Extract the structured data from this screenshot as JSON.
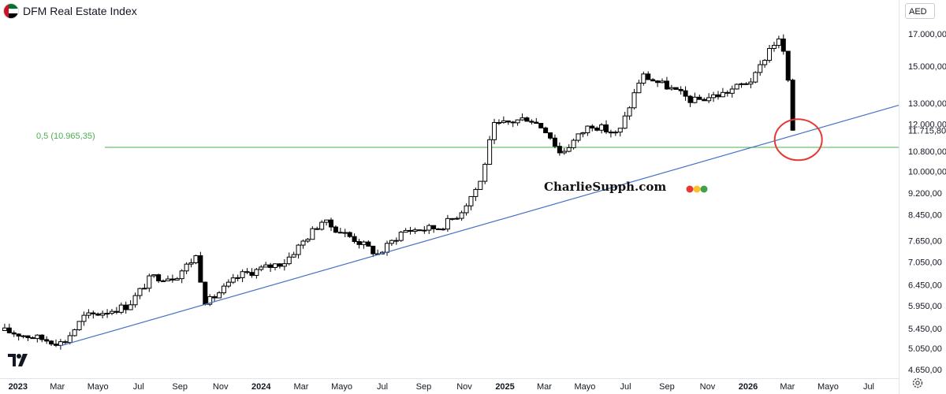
{
  "header": {
    "title": "DFM Real Estate Index",
    "currency": "AED"
  },
  "fib_label": "0,5 (10.965,35)",
  "watermark": "CharlieSupph.com",
  "icons": {
    "flag": "uae-flag-icon",
    "logo": "tradingview-logo-icon",
    "settings": "settings-gear-icon"
  },
  "colors": {
    "fib_line": "#4caf50",
    "trend_line": "#4472c4",
    "highlight": "#e53935",
    "up_body": "#ffffff",
    "down_body": "#000000"
  },
  "chart_data": {
    "type": "candlestick",
    "scale": "log",
    "ylim": [
      4500,
      18000
    ],
    "x_start": "2022-12-05",
    "x_end": "2026-08-15",
    "y_ticks": [
      "17.000,00",
      "15.000,00",
      "13.000,00",
      "12.000,00",
      "11.715,80",
      "10.800,00",
      "10.000,00",
      "9.200,00",
      "8.450,00",
      "7.650,00",
      "7.050,00",
      "6.450,00",
      "5.950,00",
      "5.450,00",
      "5.050,00",
      "4.650,00"
    ],
    "y_tick_values": [
      17000,
      15000,
      13000,
      12000,
      11715.8,
      10800,
      10000,
      9200,
      8450,
      7650,
      7050,
      6450,
      5950,
      5450,
      5050,
      4650
    ],
    "last_price_label": "11.715,80",
    "x_ticks": [
      {
        "label": "2023",
        "date": "2023-01-01",
        "bold": true
      },
      {
        "label": "Mar",
        "date": "2023-03-01",
        "bold": false
      },
      {
        "label": "Mayo",
        "date": "2023-05-01",
        "bold": false
      },
      {
        "label": "Jul",
        "date": "2023-07-01",
        "bold": false
      },
      {
        "label": "Sep",
        "date": "2023-09-01",
        "bold": false
      },
      {
        "label": "Nov",
        "date": "2023-11-01",
        "bold": false
      },
      {
        "label": "2024",
        "date": "2024-01-01",
        "bold": true
      },
      {
        "label": "Mar",
        "date": "2024-03-01",
        "bold": false
      },
      {
        "label": "Mayo",
        "date": "2024-05-01",
        "bold": false
      },
      {
        "label": "Jul",
        "date": "2024-07-01",
        "bold": false
      },
      {
        "label": "Sep",
        "date": "2024-09-01",
        "bold": false
      },
      {
        "label": "Nov",
        "date": "2024-11-01",
        "bold": false
      },
      {
        "label": "2025",
        "date": "2025-01-01",
        "bold": true
      },
      {
        "label": "Mar",
        "date": "2025-03-01",
        "bold": false
      },
      {
        "label": "Mayo",
        "date": "2025-05-01",
        "bold": false
      },
      {
        "label": "Jul",
        "date": "2025-07-01",
        "bold": false
      },
      {
        "label": "Sep",
        "date": "2025-09-01",
        "bold": false
      },
      {
        "label": "Nov",
        "date": "2025-11-01",
        "bold": false
      },
      {
        "label": "2026",
        "date": "2026-01-01",
        "bold": true
      },
      {
        "label": "Mar",
        "date": "2026-03-01",
        "bold": false
      },
      {
        "label": "Mayo",
        "date": "2026-05-01",
        "bold": false
      },
      {
        "label": "Jul",
        "date": "2026-07-01",
        "bold": false
      }
    ],
    "key_closes": [
      {
        "date": "2022-12-12",
        "close": 5400
      },
      {
        "date": "2023-02-01",
        "close": 5250
      },
      {
        "date": "2023-03-10",
        "close": 5150
      },
      {
        "date": "2023-04-10",
        "close": 5700
      },
      {
        "date": "2023-06-15",
        "close": 5950
      },
      {
        "date": "2023-07-20",
        "close": 6650
      },
      {
        "date": "2023-08-25",
        "close": 6650
      },
      {
        "date": "2023-09-25",
        "close": 7200
      },
      {
        "date": "2023-10-10",
        "close": 6000
      },
      {
        "date": "2023-12-01",
        "close": 6700
      },
      {
        "date": "2024-02-05",
        "close": 7050
      },
      {
        "date": "2024-04-01",
        "close": 8250
      },
      {
        "date": "2024-05-20",
        "close": 7700
      },
      {
        "date": "2024-06-25",
        "close": 7250
      },
      {
        "date": "2024-08-01",
        "close": 7950
      },
      {
        "date": "2024-09-25",
        "close": 8050
      },
      {
        "date": "2024-10-25",
        "close": 8500
      },
      {
        "date": "2024-11-25",
        "close": 9600
      },
      {
        "date": "2024-12-15",
        "close": 11900
      },
      {
        "date": "2025-02-05",
        "close": 12300
      },
      {
        "date": "2025-03-05",
        "close": 11700
      },
      {
        "date": "2025-03-25",
        "close": 10700
      },
      {
        "date": "2025-05-10",
        "close": 12000
      },
      {
        "date": "2025-06-20",
        "close": 11500
      },
      {
        "date": "2025-07-25",
        "close": 14500
      },
      {
        "date": "2025-09-05",
        "close": 13800
      },
      {
        "date": "2025-10-10",
        "close": 13100
      },
      {
        "date": "2025-11-25",
        "close": 13500
      },
      {
        "date": "2026-01-10",
        "close": 14300
      },
      {
        "date": "2026-02-05",
        "close": 16300
      },
      {
        "date": "2026-02-20",
        "close": 16600
      },
      {
        "date": "2026-03-01",
        "close": 14500
      },
      {
        "date": "2026-03-08",
        "close": 11500
      },
      {
        "date": "2026-03-15",
        "close": 11715.8
      }
    ],
    "fib_level": 10965.35,
    "trend_line": [
      {
        "date": "2023-03-06",
        "value": 5100
      },
      {
        "date": "2026-08-15",
        "value": 12900
      }
    ]
  }
}
